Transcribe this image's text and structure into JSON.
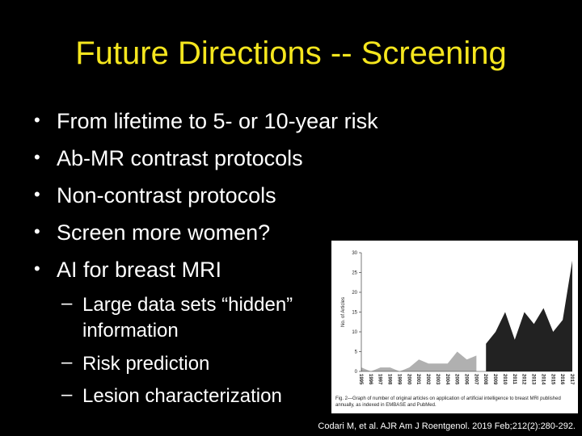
{
  "title": "Future Directions -- Screening",
  "bullets": [
    "From lifetime to 5- or 10-year risk",
    "Ab-MR contrast protocols",
    "Non-contrast protocols",
    "Screen more women?",
    "AI for breast MRI"
  ],
  "sub_bullets": [
    "Large data sets “hidden” information",
    "Risk prediction",
    "Lesion characterization"
  ],
  "figure": {
    "caption": "Fig. 2—Graph of number of original articles on application of artificial intelligence to breast MRI published annually, as indexed in EMBASE and PubMed.",
    "chart_data": {
      "type": "area",
      "y_label": "No. of Articles",
      "categories": [
        "1995",
        "1996",
        "1997",
        "1998",
        "1999",
        "2000",
        "2001",
        "2002",
        "2003",
        "2004",
        "2005",
        "2006",
        "2007",
        "2008",
        "2009",
        "2010",
        "2011",
        "2012",
        "2013",
        "2014",
        "2015",
        "2016",
        "2017"
      ],
      "series": [
        {
          "color": "#b0b0b0",
          "values": [
            1,
            0,
            1,
            1,
            0,
            1,
            3,
            2,
            2,
            2,
            5,
            3,
            4,
            null,
            null,
            null,
            null,
            null,
            null,
            null,
            null,
            null,
            null
          ]
        },
        {
          "color": "#222222",
          "values": [
            null,
            null,
            null,
            null,
            null,
            null,
            null,
            null,
            null,
            null,
            null,
            null,
            null,
            7,
            10,
            15,
            8,
            15,
            12,
            16,
            10,
            13,
            28
          ]
        }
      ],
      "ylim": [
        0,
        30
      ],
      "yticks": [
        0,
        5,
        10,
        15,
        20,
        25,
        30
      ]
    }
  },
  "citation": "Codari M, et al.  AJR Am J Roentgenol. 2019 Feb;212(2):280-292."
}
